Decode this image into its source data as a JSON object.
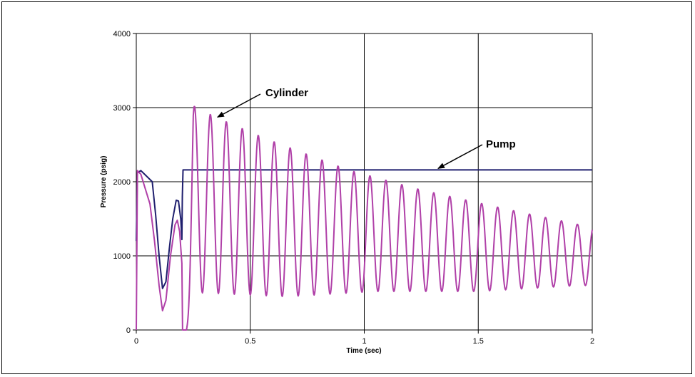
{
  "chart_data": {
    "type": "line",
    "xlabel": "Time (sec)",
    "ylabel": "Pressure (psig)",
    "xlim": [
      0,
      2
    ],
    "ylim": [
      0,
      4000
    ],
    "x_ticks": [
      "0",
      "0.5",
      "1",
      "1.5",
      "2"
    ],
    "y_ticks": [
      "0",
      "1000",
      "2000",
      "3000",
      "4000"
    ],
    "grid": true,
    "colors": {
      "pump": "#1f1f6e",
      "cylinder": "#b040a8"
    },
    "annotations": [
      {
        "text": "Cylinder",
        "target": {
          "x": 0.35,
          "y": 2900
        }
      },
      {
        "text": "Pump",
        "target": {
          "x": 1.33,
          "y": 2160
        }
      }
    ],
    "series": [
      {
        "label": "Pump",
        "points": [
          [
            0,
            1200
          ],
          [
            0.005,
            2120
          ],
          [
            0.02,
            2150
          ],
          [
            0.07,
            2000
          ],
          [
            0.085,
            1550
          ],
          [
            0.1,
            1000
          ],
          [
            0.115,
            560
          ],
          [
            0.13,
            650
          ],
          [
            0.145,
            1100
          ],
          [
            0.16,
            1500
          ],
          [
            0.175,
            1750
          ],
          [
            0.185,
            1740
          ],
          [
            0.195,
            1500
          ],
          [
            0.2,
            1220
          ],
          [
            0.202,
            1800
          ],
          [
            0.205,
            2160
          ],
          [
            2,
            2160
          ]
        ]
      },
      {
        "label": "Cylinder",
        "model": {
          "start": [
            [
              0,
              0
            ],
            [
              0.005,
              2150
            ],
            [
              0.02,
              2100
            ],
            [
              0.06,
              1700
            ],
            [
              0.08,
              1200
            ],
            [
              0.1,
              600
            ],
            [
              0.115,
              260
            ],
            [
              0.13,
              400
            ],
            [
              0.15,
              1000
            ],
            [
              0.17,
              1420
            ],
            [
              0.18,
              1480
            ],
            [
              0.19,
              1330
            ],
            [
              0.2,
              900
            ],
            [
              0.203,
              0
            ],
            [
              0.22,
              0
            ]
          ],
          "osc_start": 0.22,
          "osc_end": 2.0,
          "period": 0.07,
          "peaks": [
            [
              0.265,
              3020
            ],
            [
              0.335,
              2890
            ],
            [
              0.57,
              2580
            ],
            [
              0.93,
              2160
            ],
            [
              1.25,
              1890
            ],
            [
              1.64,
              1620
            ],
            [
              1.99,
              1390
            ]
          ],
          "troughs": [
            [
              0.3,
              500
            ],
            [
              0.66,
              450
            ],
            [
              1.05,
              520
            ],
            [
              1.5,
              520
            ],
            [
              1.94,
              600
            ]
          ]
        }
      }
    ]
  }
}
